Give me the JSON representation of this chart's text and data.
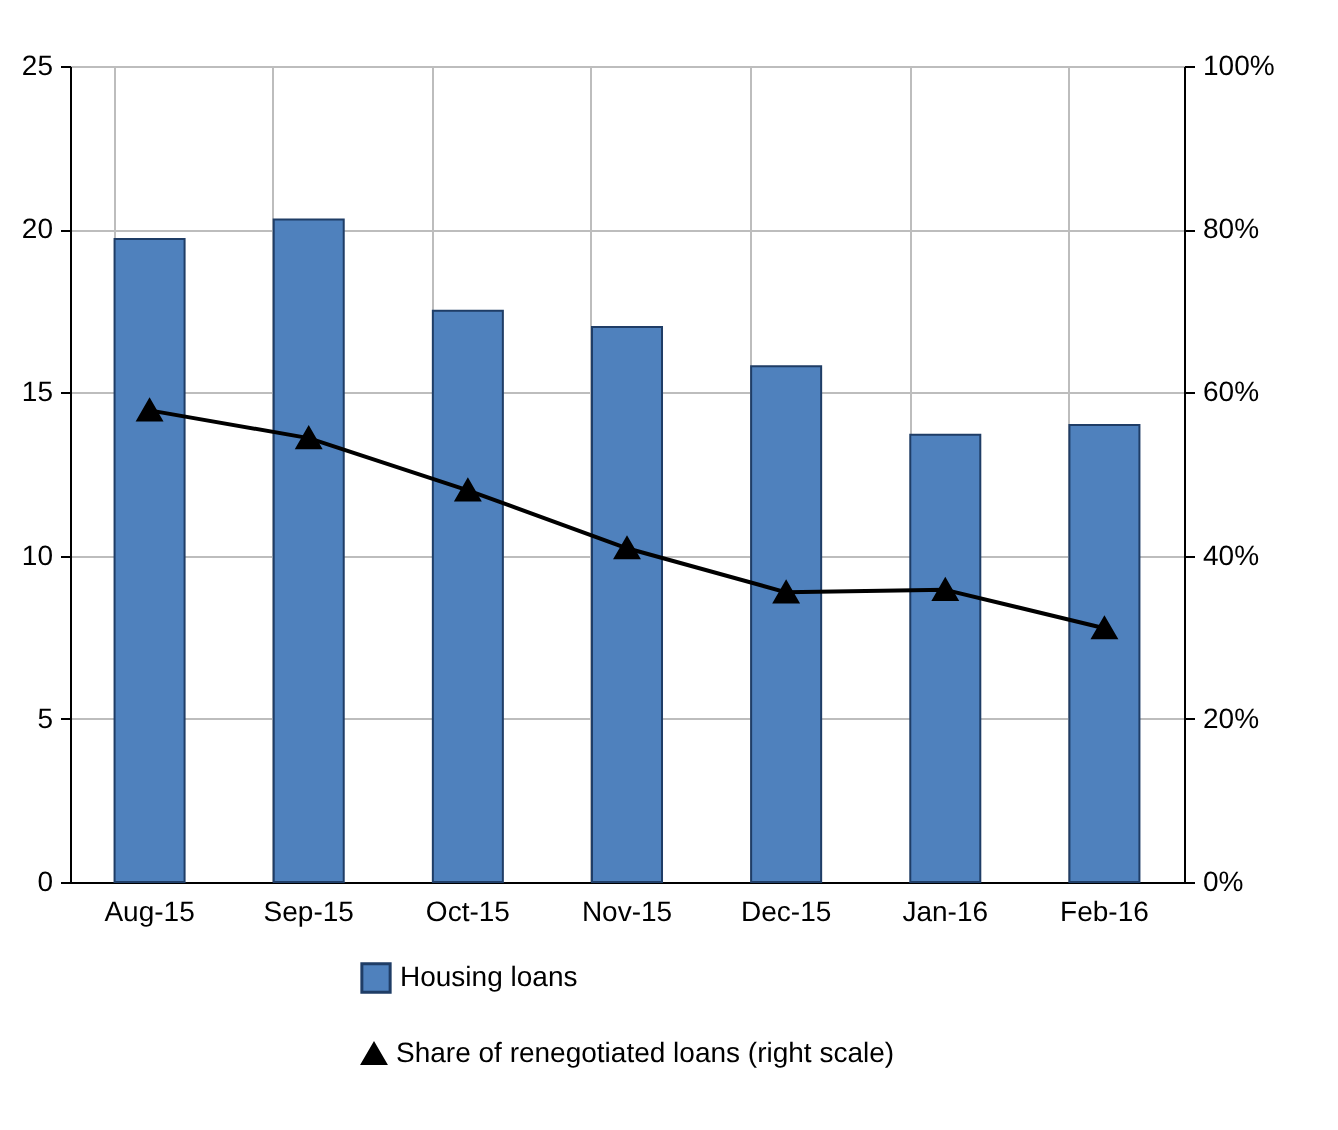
{
  "chart_data": {
    "type": "bar",
    "categories": [
      "Aug-15",
      "Sep-15",
      "Oct-15",
      "Nov-15",
      "Dec-15",
      "Jan-16",
      "Feb-16"
    ],
    "series": [
      {
        "name": "Housing loans",
        "color": "#4f81bd",
        "values": [
          19.7,
          20.3,
          17.5,
          17.0,
          15.8,
          13.7,
          14.0
        ]
      },
      {
        "name": "Share of renegotiated loans (right scale)",
        "type": "line",
        "axis": "y2",
        "color": "#000000",
        "marker": "triangle",
        "values": [
          57.8,
          54.4,
          48.0,
          40.9,
          35.5,
          35.8,
          31.1
        ]
      }
    ],
    "ylim": [
      0,
      25
    ],
    "yticks": [
      0,
      5,
      10,
      15,
      20,
      25
    ],
    "y2lim": [
      0,
      100
    ],
    "y2ticks": [
      {
        "value": 0,
        "label": "0%"
      },
      {
        "value": 20,
        "label": "20%"
      },
      {
        "value": 40,
        "label": "40%"
      },
      {
        "value": 60,
        "label": "60%"
      },
      {
        "value": 80,
        "label": "80%"
      },
      {
        "value": 100,
        "label": "100%"
      }
    ],
    "grid": true,
    "legend": "bottom"
  }
}
